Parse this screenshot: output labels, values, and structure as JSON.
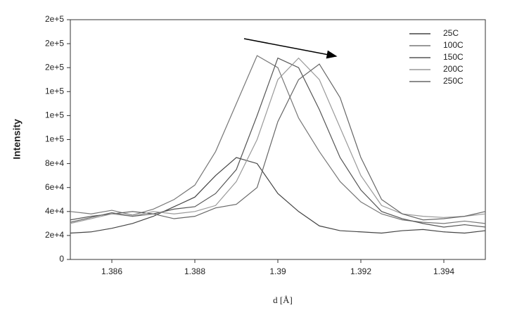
{
  "chart_data": {
    "type": "line",
    "ylabel": "Intensity",
    "xlabel": "d [Å]",
    "x": [
      1.385,
      1.3855,
      1.386,
      1.3865,
      1.387,
      1.3875,
      1.388,
      1.3885,
      1.389,
      1.3895,
      1.39,
      1.3905,
      1.391,
      1.3915,
      1.392,
      1.3925,
      1.393,
      1.3935,
      1.394,
      1.3945,
      1.395
    ],
    "series": [
      {
        "name": "25C",
        "color": "#444444",
        "values": [
          22000,
          23000,
          26000,
          30000,
          36000,
          44000,
          52000,
          70000,
          85000,
          80000,
          55000,
          40000,
          28000,
          24000,
          23000,
          22000,
          24000,
          25000,
          23000,
          22000,
          24000
        ]
      },
      {
        "name": "100C",
        "color": "#777777",
        "values": [
          40000,
          38000,
          41000,
          37000,
          42000,
          50000,
          62000,
          90000,
          130000,
          170000,
          160000,
          118000,
          90000,
          65000,
          48000,
          38000,
          33000,
          31000,
          30000,
          32000,
          30000
        ]
      },
      {
        "name": "150C",
        "color": "#555555",
        "values": [
          33000,
          36000,
          38000,
          40000,
          38000,
          42000,
          44000,
          55000,
          75000,
          120000,
          168000,
          160000,
          125000,
          85000,
          58000,
          40000,
          34000,
          30000,
          27000,
          29000,
          27000
        ]
      },
      {
        "name": "200C",
        "color": "#999999",
        "values": [
          30000,
          34000,
          38000,
          36000,
          40000,
          38000,
          40000,
          45000,
          65000,
          100000,
          150000,
          168000,
          150000,
          110000,
          70000,
          45000,
          38000,
          36000,
          35000,
          36000,
          38000
        ]
      },
      {
        "name": "250C",
        "color": "#666666",
        "values": [
          31000,
          35000,
          39000,
          36000,
          38000,
          34000,
          36000,
          43000,
          46000,
          60000,
          115000,
          150000,
          163000,
          135000,
          85000,
          50000,
          38000,
          33000,
          34000,
          36000,
          40000
        ]
      }
    ],
    "xlim": [
      1.385,
      1.395
    ],
    "xticks": [
      1.386,
      1.388,
      1.39,
      1.392,
      1.394
    ],
    "ylim": [
      0,
      200000
    ],
    "yticks": [
      0,
      {
        "value": 20000,
        "label": "2e+4"
      },
      {
        "value": 40000,
        "label": "4e+4"
      },
      {
        "value": 60000,
        "label": "6e+4"
      },
      {
        "value": 80000,
        "label": "8e+4"
      },
      {
        "value": 100000,
        "label": "1e+5"
      },
      {
        "value": 120000,
        "label": "1e+5"
      },
      {
        "value": 140000,
        "label": "1e+5"
      },
      {
        "value": 160000,
        "label": "2e+5"
      },
      {
        "value": 180000,
        "label": "2e+5"
      },
      {
        "value": 200000,
        "label": "2e+5"
      }
    ],
    "legend": "upper right",
    "grid": false
  }
}
